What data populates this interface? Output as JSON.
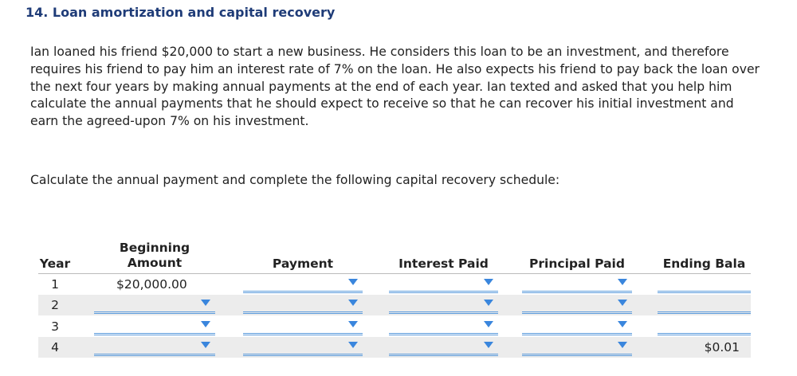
{
  "header": {
    "title": "14. Loan amortization and capital recovery"
  },
  "body": {
    "paragraphs": [
      "Ian loaned his friend $20,000 to start a new business. He considers this loan to be an investment, and therefore requires his friend to pay him an interest rate of 7% on the loan. He also expects his friend to pay back the loan over the next four years by making annual payments at the end of each year. Ian texted and asked that you help him calculate the annual payments that he should expect to receive so that he can recover his initial investment and earn the agreed-upon 7% on his investment.",
      "Calculate the annual payment and complete the following capital recovery schedule:"
    ]
  },
  "table": {
    "columns": {
      "year": "Year",
      "beginning_amount": "Beginning Amount",
      "payment": "Payment",
      "interest_paid": "Interest Paid",
      "principal_paid": "Principal Paid",
      "ending_balance": "Ending Bala"
    },
    "rows": [
      {
        "year": "1",
        "beginning_amount": "$20,000.00"
      },
      {
        "year": "2"
      },
      {
        "year": "3"
      },
      {
        "year": "4",
        "ending_balance": "$0.01"
      }
    ]
  }
}
